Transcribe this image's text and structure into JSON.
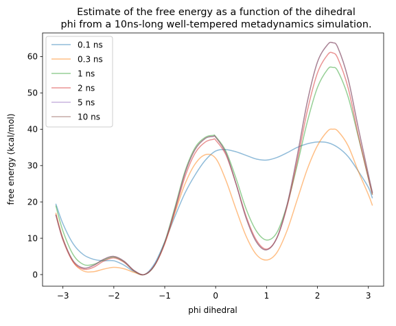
{
  "chart_data": {
    "type": "line",
    "title_lines": [
      "Estimate of the free energy as a function of the dihedral",
      "phi from a 10ns-long well-tempered metadynamics simulation."
    ],
    "xlabel": "phi dihedral",
    "ylabel": "free energy (kcal/mol)",
    "xlim": [
      -3.4,
      3.3
    ],
    "ylim": [
      -3.2,
      66.5
    ],
    "xticks": [
      -3,
      -2,
      -1,
      0,
      1,
      2,
      3
    ],
    "xtick_labels": [
      "−3",
      "−2",
      "−1",
      "0",
      "1",
      "2",
      "3"
    ],
    "yticks": [
      0,
      10,
      20,
      30,
      40,
      50,
      60
    ],
    "ytick_labels": [
      "0",
      "10",
      "20",
      "30",
      "40",
      "50",
      "60"
    ],
    "grid": false,
    "legend_position": "top-left",
    "series": [
      {
        "name": "0.1 ns",
        "color": "#1f77b4",
        "x": [
          -3.14,
          -3.0,
          -2.8,
          -2.6,
          -2.4,
          -2.2,
          -2.0,
          -1.8,
          -1.6,
          -1.4,
          -1.2,
          -1.0,
          -0.8,
          -0.6,
          -0.4,
          -0.2,
          0.0,
          0.2,
          0.4,
          0.6,
          0.8,
          1.0,
          1.2,
          1.4,
          1.6,
          1.8,
          2.0,
          2.2,
          2.4,
          2.6,
          2.8,
          3.0,
          3.08
        ],
        "y": [
          19.5,
          14.0,
          8.5,
          5.5,
          4.2,
          3.8,
          3.8,
          2.6,
          0.8,
          0.0,
          3.0,
          9.0,
          16.0,
          22.5,
          27.5,
          31.5,
          34.0,
          34.4,
          33.8,
          32.8,
          31.8,
          31.5,
          32.2,
          33.5,
          35.0,
          36.0,
          36.5,
          36.3,
          35.0,
          32.5,
          28.5,
          24.0,
          21.0
        ]
      },
      {
        "name": "0.3 ns",
        "color": "#ff7f0e",
        "x": [
          -3.14,
          -3.0,
          -2.8,
          -2.6,
          -2.4,
          -2.2,
          -2.0,
          -1.8,
          -1.6,
          -1.4,
          -1.2,
          -1.0,
          -0.8,
          -0.6,
          -0.4,
          -0.2,
          0.0,
          0.2,
          0.4,
          0.6,
          0.8,
          1.0,
          1.2,
          1.4,
          1.6,
          1.8,
          2.0,
          2.2,
          2.3,
          2.4,
          2.6,
          2.8,
          3.0,
          3.08
        ],
        "y": [
          17.0,
          10.0,
          3.5,
          1.0,
          0.8,
          1.5,
          2.0,
          1.6,
          0.6,
          0.0,
          2.5,
          8.5,
          17.0,
          25.0,
          30.5,
          33.0,
          32.0,
          26.0,
          18.0,
          10.5,
          5.5,
          4.0,
          6.0,
          12.0,
          20.5,
          29.0,
          35.5,
          39.5,
          40.0,
          39.5,
          35.5,
          28.5,
          22.0,
          19.0
        ]
      },
      {
        "name": "1 ns",
        "color": "#2ca02c",
        "x": [
          -3.14,
          -3.0,
          -2.8,
          -2.6,
          -2.4,
          -2.2,
          -2.0,
          -1.8,
          -1.6,
          -1.4,
          -1.2,
          -1.0,
          -0.8,
          -0.6,
          -0.4,
          -0.2,
          -0.05,
          0.0,
          0.2,
          0.4,
          0.6,
          0.8,
          1.0,
          1.2,
          1.4,
          1.6,
          1.8,
          2.0,
          2.2,
          2.3,
          2.4,
          2.6,
          2.8,
          3.0,
          3.08
        ],
        "y": [
          19.0,
          12.0,
          5.5,
          2.8,
          2.8,
          4.0,
          4.8,
          3.5,
          1.0,
          0.0,
          2.5,
          9.0,
          18.5,
          28.5,
          35.0,
          37.8,
          38.3,
          38.0,
          34.0,
          26.5,
          18.0,
          12.0,
          9.5,
          11.5,
          19.0,
          30.0,
          42.0,
          51.5,
          56.5,
          57.0,
          56.0,
          49.0,
          38.0,
          26.5,
          22.0
        ]
      },
      {
        "name": "2 ns",
        "color": "#d62728",
        "x": [
          -3.14,
          -3.0,
          -2.8,
          -2.6,
          -2.4,
          -2.2,
          -2.0,
          -1.8,
          -1.6,
          -1.4,
          -1.2,
          -1.0,
          -0.8,
          -0.6,
          -0.4,
          -0.2,
          -0.05,
          0.0,
          0.2,
          0.4,
          0.6,
          0.8,
          1.0,
          1.2,
          1.4,
          1.6,
          1.8,
          2.0,
          2.2,
          2.3,
          2.4,
          2.6,
          2.8,
          3.0,
          3.08
        ],
        "y": [
          16.5,
          9.5,
          3.5,
          1.5,
          2.0,
          3.7,
          4.6,
          3.4,
          1.0,
          0.0,
          2.5,
          8.5,
          17.5,
          27.0,
          33.5,
          36.5,
          37.2,
          37.0,
          33.0,
          25.0,
          16.0,
          9.5,
          7.0,
          10.0,
          18.5,
          31.0,
          45.0,
          55.5,
          60.5,
          61.0,
          59.5,
          51.5,
          38.5,
          26.5,
          22.0
        ]
      },
      {
        "name": "5 ns",
        "color": "#9467bd",
        "x": [
          -3.14,
          -3.0,
          -2.8,
          -2.6,
          -2.4,
          -2.2,
          -2.0,
          -1.8,
          -1.6,
          -1.4,
          -1.2,
          -1.0,
          -0.8,
          -0.6,
          -0.4,
          -0.2,
          -0.05,
          0.0,
          0.2,
          0.4,
          0.6,
          0.8,
          1.0,
          1.2,
          1.4,
          1.6,
          1.8,
          2.0,
          2.2,
          2.3,
          2.4,
          2.6,
          2.8,
          3.0,
          3.08
        ],
        "y": [
          16.5,
          9.8,
          3.8,
          1.8,
          2.5,
          4.2,
          5.0,
          3.7,
          1.1,
          0.0,
          2.6,
          8.8,
          18.0,
          28.0,
          34.5,
          37.5,
          38.0,
          37.8,
          33.5,
          25.0,
          15.5,
          9.0,
          6.8,
          10.0,
          19.0,
          32.5,
          47.5,
          58.5,
          63.3,
          63.8,
          62.5,
          54.0,
          40.5,
          27.5,
          22.5
        ]
      },
      {
        "name": "10 ns",
        "color": "#8c564b",
        "x": [
          -3.14,
          -3.0,
          -2.8,
          -2.6,
          -2.4,
          -2.2,
          -2.0,
          -1.8,
          -1.6,
          -1.4,
          -1.2,
          -1.0,
          -0.8,
          -0.6,
          -0.4,
          -0.2,
          -0.05,
          0.0,
          0.2,
          0.4,
          0.6,
          0.8,
          1.0,
          1.2,
          1.4,
          1.6,
          1.8,
          2.0,
          2.2,
          2.3,
          2.4,
          2.6,
          2.8,
          3.0,
          3.08
        ],
        "y": [
          16.5,
          9.8,
          3.8,
          1.8,
          2.5,
          4.2,
          5.0,
          3.7,
          1.1,
          0.0,
          2.6,
          8.8,
          18.0,
          28.0,
          34.5,
          37.5,
          38.0,
          37.8,
          33.5,
          25.0,
          15.5,
          9.0,
          6.8,
          10.0,
          19.0,
          32.5,
          47.5,
          58.5,
          63.3,
          63.8,
          62.5,
          54.0,
          40.5,
          27.5,
          22.5
        ]
      }
    ]
  }
}
